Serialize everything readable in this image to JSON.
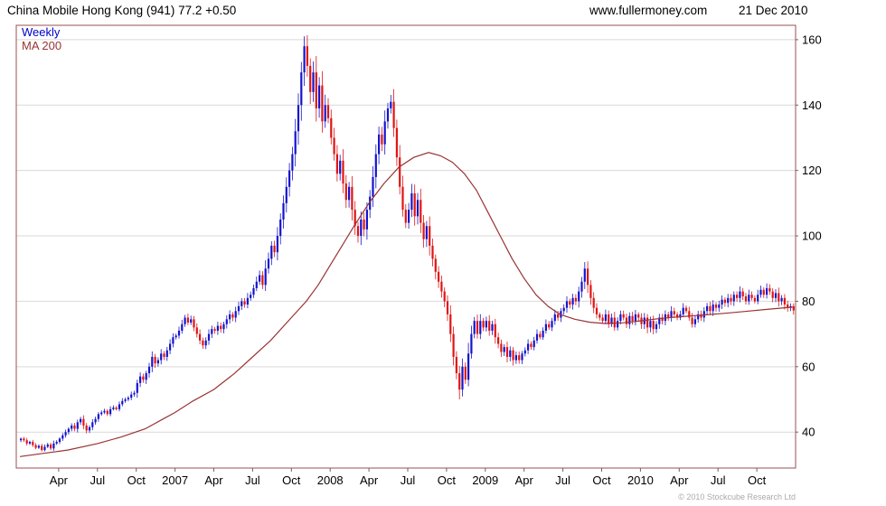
{
  "header": {
    "title": "China Mobile Hong Kong (941) 77.2 +0.50",
    "site": "www.fullermoney.com",
    "date": "21 Dec 2010"
  },
  "legend": {
    "series": "Weekly",
    "ma": "MA 200"
  },
  "footer": {
    "copyright": "© 2010 Stockcube Research Ltd"
  },
  "chart_data": {
    "type": "candlestick",
    "title": "China Mobile Hong Kong (941)",
    "frequency": "Weekly",
    "last_price": 77.2,
    "change": "+0.50",
    "date": "21 Dec 2010",
    "x_range": "Jan 2006 - Dec 2010",
    "ylim": [
      29,
      164.4
    ],
    "yticks": [
      40,
      60,
      80,
      100,
      120,
      140,
      160
    ],
    "xticks": [
      {
        "week": 13,
        "label": "Apr"
      },
      {
        "week": 26,
        "label": "Jul"
      },
      {
        "week": 39,
        "label": "Oct"
      },
      {
        "week": 52,
        "label": "2007"
      },
      {
        "week": 65,
        "label": "Apr"
      },
      {
        "week": 78,
        "label": "Jul"
      },
      {
        "week": 91,
        "label": "Oct"
      },
      {
        "week": 104,
        "label": "2008"
      },
      {
        "week": 117,
        "label": "Apr"
      },
      {
        "week": 130,
        "label": "Jul"
      },
      {
        "week": 143,
        "label": "Oct"
      },
      {
        "week": 156,
        "label": "2009"
      },
      {
        "week": 169,
        "label": "Apr"
      },
      {
        "week": 182,
        "label": "Jul"
      },
      {
        "week": 195,
        "label": "Oct"
      },
      {
        "week": 208,
        "label": "2010"
      },
      {
        "week": 221,
        "label": "Apr"
      },
      {
        "week": 234,
        "label": "Jul"
      },
      {
        "week": 247,
        "label": "Oct"
      }
    ],
    "first_open": 37.5,
    "weekly_closes": [
      38,
      37.5,
      36.5,
      37,
      36,
      35.2,
      35.8,
      34.5,
      35.5,
      36.2,
      35,
      36.5,
      37,
      38,
      39,
      40,
      41,
      42,
      41,
      43,
      44,
      42,
      40.5,
      41.5,
      43,
      44,
      45.5,
      46,
      46.5,
      45.5,
      47,
      47.5,
      47,
      48.5,
      49.5,
      50,
      50.5,
      51.5,
      52,
      55,
      57,
      56,
      58,
      60,
      63,
      61,
      62,
      64,
      63,
      65,
      67,
      69,
      69.5,
      71,
      73,
      75,
      73.5,
      74.5,
      72,
      70,
      68,
      66.5,
      68,
      70,
      71.5,
      71,
      72.5,
      71.5,
      73,
      74.5,
      76,
      75,
      77,
      78.5,
      80,
      79,
      81,
      82,
      84,
      86,
      88,
      85,
      90,
      93,
      97,
      95,
      100,
      105,
      110,
      115,
      120,
      125,
      132,
      140,
      150,
      158,
      152,
      144,
      150,
      139,
      146,
      135,
      140,
      136,
      130,
      125,
      119,
      123,
      116,
      111,
      115,
      108,
      103,
      100,
      105,
      102,
      108,
      112,
      118,
      125,
      131,
      128,
      135,
      139,
      141,
      133,
      124,
      115,
      108,
      104,
      108,
      113,
      106,
      111,
      104,
      99,
      103,
      97,
      93,
      89,
      86,
      83,
      80,
      76,
      70,
      63,
      58,
      53,
      60,
      56,
      64,
      70,
      74,
      70,
      74,
      72,
      74,
      71,
      73,
      69,
      67,
      64.5,
      66,
      63,
      65,
      62,
      63.5,
      62,
      64,
      65,
      67,
      66,
      68,
      70,
      69,
      71,
      73,
      72,
      74,
      76,
      75,
      77,
      78,
      80,
      79,
      81,
      80,
      83,
      86,
      90,
      85,
      81,
      78,
      76,
      75,
      74,
      76,
      73,
      75,
      72,
      74,
      76,
      75,
      73,
      75.5,
      74,
      76,
      75,
      73,
      75,
      72,
      74,
      71.5,
      73,
      75,
      74,
      76,
      75,
      77,
      76,
      75,
      76,
      78,
      77,
      75,
      73,
      74.5,
      76,
      75,
      77,
      78.5,
      77,
      79,
      78,
      79,
      80.5,
      79.5,
      81,
      80,
      82,
      81,
      83,
      81.5,
      80,
      82,
      81,
      80,
      82,
      83.5,
      82,
      84,
      83,
      81,
      82.5,
      80,
      81,
      79,
      78,
      78.5,
      77.2
    ],
    "wick_overrides": {
      "95": {
        "high": 161
      },
      "147": {
        "low": 50
      },
      "189": {
        "high": 92
      }
    },
    "ma200": {
      "label": "MA 200",
      "points": [
        [
          0,
          32.5
        ],
        [
          8,
          33.5
        ],
        [
          16,
          34.5
        ],
        [
          26,
          36.5
        ],
        [
          34,
          38.5
        ],
        [
          42,
          41
        ],
        [
          48,
          44
        ],
        [
          52,
          46
        ],
        [
          58,
          49.5
        ],
        [
          65,
          53
        ],
        [
          72,
          58
        ],
        [
          78,
          63
        ],
        [
          84,
          68
        ],
        [
          91,
          75
        ],
        [
          96,
          80
        ],
        [
          100,
          85
        ],
        [
          104,
          91
        ],
        [
          108,
          97
        ],
        [
          112,
          103
        ],
        [
          117,
          110
        ],
        [
          122,
          116
        ],
        [
          127,
          121
        ],
        [
          132,
          124
        ],
        [
          137,
          125.5
        ],
        [
          141,
          124.5
        ],
        [
          145,
          122.5
        ],
        [
          149,
          119
        ],
        [
          153,
          114
        ],
        [
          157,
          107
        ],
        [
          161,
          100
        ],
        [
          165,
          93
        ],
        [
          169,
          87
        ],
        [
          173,
          82
        ],
        [
          177,
          78.5
        ],
        [
          181,
          76
        ],
        [
          186,
          74.5
        ],
        [
          191,
          73.6
        ],
        [
          196,
          73.2
        ],
        [
          202,
          73.4
        ],
        [
          208,
          74
        ],
        [
          215,
          74.8
        ],
        [
          222,
          75.3
        ],
        [
          229,
          75.8
        ],
        [
          236,
          76.3
        ],
        [
          243,
          76.9
        ],
        [
          250,
          77.5
        ],
        [
          259,
          78.2
        ]
      ]
    },
    "colors": {
      "up": "#1414cc",
      "down": "#e01414",
      "ma": "#993333",
      "grid": "#d9d9d9",
      "frame": "#995050",
      "axis_text": "#000000"
    }
  }
}
